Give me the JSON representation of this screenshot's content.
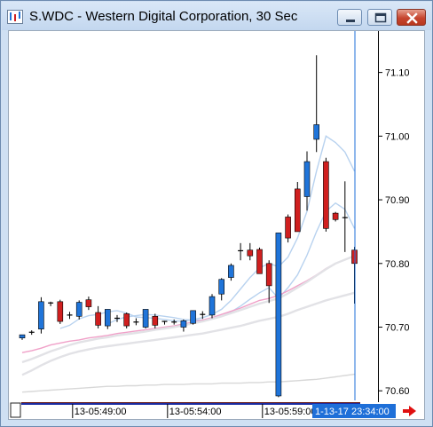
{
  "window": {
    "title": "S.WDC - Western Digital Corporation, 30 Sec",
    "icon": "chart-app-icon",
    "buttons": [
      "minimize-icon",
      "maximize-icon",
      "close-icon"
    ]
  },
  "chart_data": {
    "type": "candlestick",
    "symbol": "S.WDC",
    "interval": "30 Sec",
    "ylim": [
      70.585,
      71.165
    ],
    "y_ticks": [
      70.6,
      70.7,
      70.8,
      70.9,
      71.0,
      71.1
    ],
    "y_tick_labels": [
      "70.60",
      "70.70",
      "70.80",
      "70.90",
      "71.00",
      "71.10"
    ],
    "time_labels": [
      "13-05:49:00",
      "13-05:54:00",
      "13-05:59:00"
    ],
    "time_label_bars": [
      4,
      14,
      24
    ],
    "cursor_time": "1-13-17 23:34:00",
    "up_color": "#1f74d9",
    "down_color": "#d01f1f",
    "candles": [
      {
        "o": 70.683,
        "h": 70.688,
        "l": 70.68,
        "c": 70.688
      },
      {
        "o": 70.691,
        "h": 70.695,
        "l": 70.688,
        "c": 70.692
      },
      {
        "o": 70.697,
        "h": 70.747,
        "l": 70.69,
        "c": 70.74
      },
      {
        "o": 70.738,
        "h": 70.74,
        "l": 70.733,
        "c": 70.738
      },
      {
        "o": 70.74,
        "h": 70.743,
        "l": 70.705,
        "c": 70.709
      },
      {
        "o": 70.719,
        "h": 70.724,
        "l": 70.713,
        "c": 70.718
      },
      {
        "o": 70.717,
        "h": 70.742,
        "l": 70.712,
        "c": 70.739
      },
      {
        "o": 70.743,
        "h": 70.748,
        "l": 70.727,
        "c": 70.732
      },
      {
        "o": 70.723,
        "h": 70.733,
        "l": 70.698,
        "c": 70.703
      },
      {
        "o": 70.702,
        "h": 70.728,
        "l": 70.697,
        "c": 70.728
      },
      {
        "o": 70.714,
        "h": 70.719,
        "l": 70.708,
        "c": 70.714
      },
      {
        "o": 70.721,
        "h": 70.723,
        "l": 70.698,
        "c": 70.702
      },
      {
        "o": 70.707,
        "h": 70.714,
        "l": 70.703,
        "c": 70.708
      },
      {
        "o": 70.7,
        "h": 70.728,
        "l": 70.698,
        "c": 70.728
      },
      {
        "o": 70.717,
        "h": 70.721,
        "l": 70.698,
        "c": 70.703
      },
      {
        "o": 70.709,
        "h": 70.71,
        "l": 70.704,
        "c": 70.709
      },
      {
        "o": 70.708,
        "h": 70.712,
        "l": 70.704,
        "c": 70.708
      },
      {
        "o": 70.7,
        "h": 70.712,
        "l": 70.693,
        "c": 70.71
      },
      {
        "o": 70.706,
        "h": 70.726,
        "l": 70.704,
        "c": 70.726
      },
      {
        "o": 70.72,
        "h": 70.725,
        "l": 70.713,
        "c": 70.72
      },
      {
        "o": 70.719,
        "h": 70.752,
        "l": 70.714,
        "c": 70.748
      },
      {
        "o": 70.752,
        "h": 70.777,
        "l": 70.742,
        "c": 70.775
      },
      {
        "o": 70.778,
        "h": 70.8,
        "l": 70.773,
        "c": 70.797
      },
      {
        "o": 70.82,
        "h": 70.832,
        "l": 70.805,
        "c": 70.82
      },
      {
        "o": 70.821,
        "h": 70.832,
        "l": 70.805,
        "c": 70.812
      },
      {
        "o": 70.822,
        "h": 70.825,
        "l": 70.784,
        "c": 70.784
      },
      {
        "o": 70.8,
        "h": 70.805,
        "l": 70.738,
        "c": 70.765
      },
      {
        "o": 70.592,
        "h": 70.848,
        "l": 70.59,
        "c": 70.848
      },
      {
        "o": 70.873,
        "h": 70.877,
        "l": 70.833,
        "c": 70.84
      },
      {
        "o": 70.917,
        "h": 70.928,
        "l": 70.85,
        "c": 70.85
      },
      {
        "o": 70.905,
        "h": 70.976,
        "l": 70.883,
        "c": 70.96
      },
      {
        "o": 70.995,
        "h": 71.127,
        "l": 70.975,
        "c": 71.018
      },
      {
        "o": 70.96,
        "h": 70.966,
        "l": 70.85,
        "c": 70.855
      },
      {
        "o": 70.879,
        "h": 70.881,
        "l": 70.866,
        "c": 70.869
      },
      {
        "o": 70.872,
        "h": 70.929,
        "l": 70.818,
        "c": 70.872
      },
      {
        "o": 70.821,
        "h": 70.826,
        "l": 70.737,
        "c": 70.8
      }
    ],
    "moving_averages": [
      {
        "name": "",
        "color": "#b8d2ef",
        "values": [
          null,
          null,
          null,
          null,
          70.698,
          70.703,
          70.713,
          70.718,
          70.72,
          70.724,
          70.726,
          70.722,
          70.716,
          70.715,
          70.714,
          70.712,
          70.71,
          70.709,
          70.712,
          70.715,
          70.72,
          70.728,
          70.742,
          70.76,
          70.778,
          70.793,
          70.8,
          70.795,
          70.81,
          70.84,
          70.882,
          70.945,
          71.0,
          70.99,
          70.975,
          70.945
        ]
      },
      {
        "name": "",
        "color": "#b8d2ef",
        "values": [
          null,
          null,
          null,
          null,
          null,
          null,
          null,
          null,
          null,
          70.705,
          70.712,
          70.716,
          70.718,
          70.72,
          70.719,
          70.717,
          70.715,
          70.712,
          70.711,
          70.711,
          70.713,
          70.717,
          70.724,
          70.733,
          70.744,
          70.754,
          70.762,
          70.745,
          70.762,
          70.782,
          70.813,
          70.85,
          70.882,
          70.895,
          70.885,
          70.855
        ]
      },
      {
        "name": "",
        "color": "#f0a0c8",
        "values": [
          70.66,
          70.663,
          70.667,
          70.672,
          70.675,
          70.678,
          70.68,
          70.683,
          70.685,
          70.687,
          70.69,
          70.692,
          70.694,
          70.696,
          70.698,
          70.7,
          70.702,
          70.705,
          70.708,
          70.711,
          70.715,
          70.72,
          70.725,
          70.73,
          70.736,
          70.742,
          70.745,
          70.75,
          70.757,
          70.765,
          70.773,
          70.782,
          70.792,
          70.8,
          70.806,
          70.812
        ]
      },
      {
        "name": "",
        "color": "#e2e2e6",
        "values": [
          70.645,
          70.65,
          70.656,
          70.662,
          70.667,
          70.672,
          70.676,
          70.679,
          70.682,
          70.684,
          70.687,
          70.689,
          70.691,
          70.693,
          70.696,
          70.698,
          70.7,
          70.703,
          70.706,
          70.709,
          70.713,
          70.717,
          70.722,
          70.727,
          70.732,
          70.737,
          70.741,
          70.745,
          70.753,
          70.762,
          70.771,
          70.781,
          70.791,
          70.8,
          70.806,
          70.812
        ]
      },
      {
        "name": "",
        "color": "#e2e2e6",
        "values": [
          70.625,
          70.632,
          70.64,
          70.647,
          70.653,
          70.658,
          70.662,
          70.665,
          70.668,
          70.67,
          70.672,
          70.674,
          70.676,
          70.678,
          70.68,
          70.682,
          70.684,
          70.686,
          70.688,
          70.69,
          70.693,
          70.696,
          70.699,
          70.702,
          70.706,
          70.71,
          70.713,
          70.716,
          70.721,
          70.727,
          70.732,
          70.737,
          70.742,
          70.746,
          70.75,
          70.754
        ]
      },
      {
        "name": "",
        "color": "#d8d8d8",
        "values": [
          70.598,
          70.599,
          70.6,
          70.601,
          70.602,
          70.603,
          70.604,
          70.605,
          70.606,
          70.607,
          70.607,
          70.608,
          70.608,
          70.609,
          70.609,
          70.61,
          70.61,
          70.61,
          70.611,
          70.611,
          70.611,
          70.612,
          70.612,
          70.612,
          70.613,
          70.613,
          70.614,
          70.614,
          70.615,
          70.616,
          70.617,
          70.618,
          70.62,
          70.622,
          70.624,
          70.626
        ]
      }
    ],
    "cursor_color": "#1e6fd8"
  }
}
